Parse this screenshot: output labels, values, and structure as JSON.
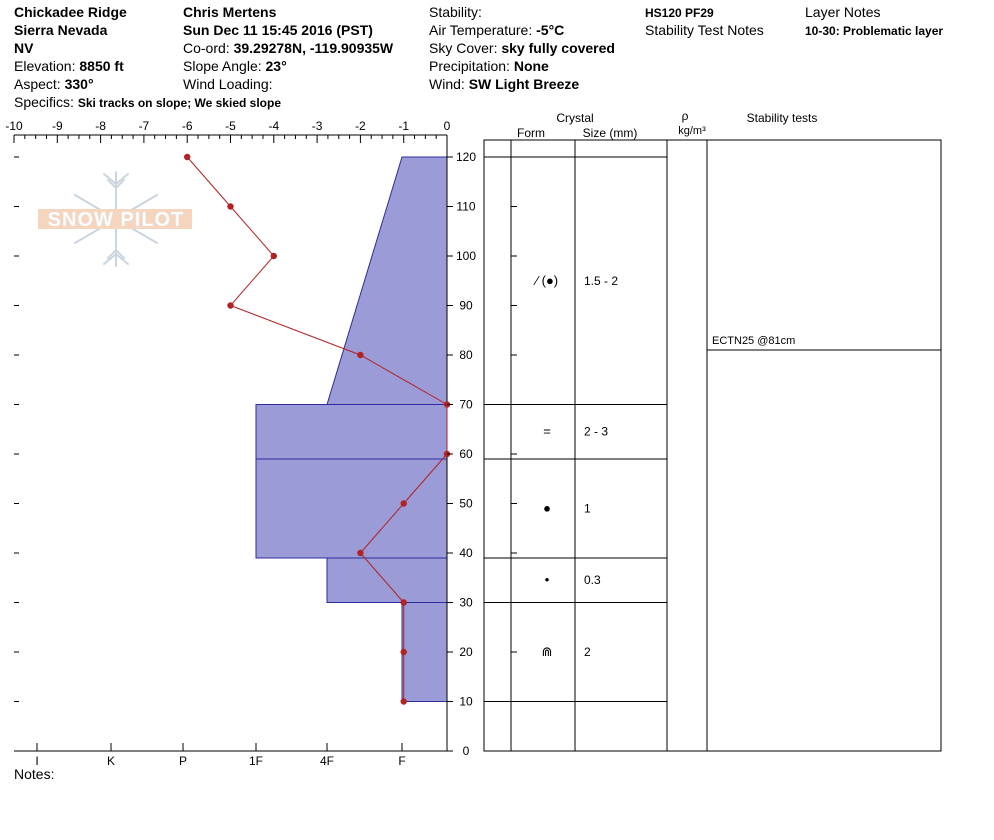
{
  "header": {
    "col1": {
      "site": "Chickadee Ridge",
      "range": "Sierra Nevada",
      "state": "NV",
      "elevation_label": "Elevation:",
      "elevation_value": "8850 ft",
      "aspect_label": "Aspect:",
      "aspect_value": "330°",
      "specifics_label": "Specifics:",
      "specifics_value": "Ski tracks on slope; We skied slope"
    },
    "col2": {
      "observer": "Chris Mertens",
      "datetime": "Sun Dec 11 15:45 2016 (PST)",
      "coord_label": "Co-ord:",
      "coord_value": "39.29278N, -119.90935W",
      "slope_label": "Slope Angle:",
      "slope_value": "23°",
      "wind_loading_label": "Wind Loading:"
    },
    "col3": {
      "stability_label": "Stability:",
      "air_temp_label": "Air Temperature:",
      "air_temp_value": "-5°C",
      "sky_label": "Sky Cover:",
      "sky_value": "sky fully covered",
      "precip_label": "Precipitation:",
      "precip_value": "None",
      "wind_label": "Wind:",
      "wind_value": "SW Light Breeze"
    },
    "col4": {
      "hs_pf": "HS120 PF29",
      "stability_test_notes": "Stability Test Notes"
    },
    "col5": {
      "layer_notes": "Layer Notes",
      "layer_note_1": "10-30: Problematic layer"
    }
  },
  "logo": {
    "text": "SNOW PILOT"
  },
  "notes_label": "Notes:",
  "table": {
    "crystal_header": "Crystal",
    "form_header": "Form",
    "size_header": "Size (mm)",
    "rho_header": "ρ",
    "density_unit": "kg/m³",
    "stability_header": "Stability tests",
    "layers": [
      {
        "top": 120,
        "bottom": 70,
        "form_symbol": "⁄ (●)",
        "size": "1.5 - 2"
      },
      {
        "top": 70,
        "bottom": 59,
        "form_symbol": "=",
        "size": "2 - 3"
      },
      {
        "top": 59,
        "bottom": 39,
        "form_symbol": "●",
        "size": "1"
      },
      {
        "top": 39,
        "bottom": 30,
        "form_symbol": "•",
        "size": "0.3"
      },
      {
        "top": 30,
        "bottom": 10,
        "form_symbol": "⋒",
        "size": "2"
      }
    ],
    "stability_tests": [
      {
        "label": "ECTN25 @81cm",
        "depth": 81
      }
    ]
  },
  "chart_data": {
    "type": "line",
    "title": "",
    "x_temperature_ticks": [
      "-10",
      "-9",
      "-8",
      "-7",
      "-6",
      "-5",
      "-4",
      "-3",
      "-2",
      "-1",
      "0"
    ],
    "x_hardness_ticks": [
      "I",
      "K",
      "P",
      "1F",
      "4F",
      "F"
    ],
    "y_ticks": [
      "0",
      "10",
      "20",
      "30",
      "40",
      "50",
      "60",
      "70",
      "80",
      "90",
      "100",
      "110",
      "120"
    ],
    "xlim": [
      -10,
      0
    ],
    "ylim": [
      0,
      120
    ],
    "temperature_profile": {
      "x": [
        -6,
        -5,
        -4,
        -5,
        -2,
        0,
        0,
        -1,
        -2,
        -1,
        -1,
        -1
      ],
      "y": [
        120,
        110,
        100,
        90,
        80,
        70,
        60,
        50,
        40,
        30,
        20,
        10
      ],
      "color": "#b22222"
    },
    "hardness_profile": {
      "color": "#9b9bd8",
      "layers": [
        {
          "top": 120,
          "bottom": 70,
          "hardness_top": "F",
          "hardness_bottom": "4F"
        },
        {
          "top": 70,
          "bottom": 59,
          "hardness": "1F"
        },
        {
          "top": 59,
          "bottom": 39,
          "hardness": "1F"
        },
        {
          "top": 39,
          "bottom": 30,
          "hardness": "4F"
        },
        {
          "top": 30,
          "bottom": 10,
          "hardness": "F"
        }
      ]
    }
  }
}
